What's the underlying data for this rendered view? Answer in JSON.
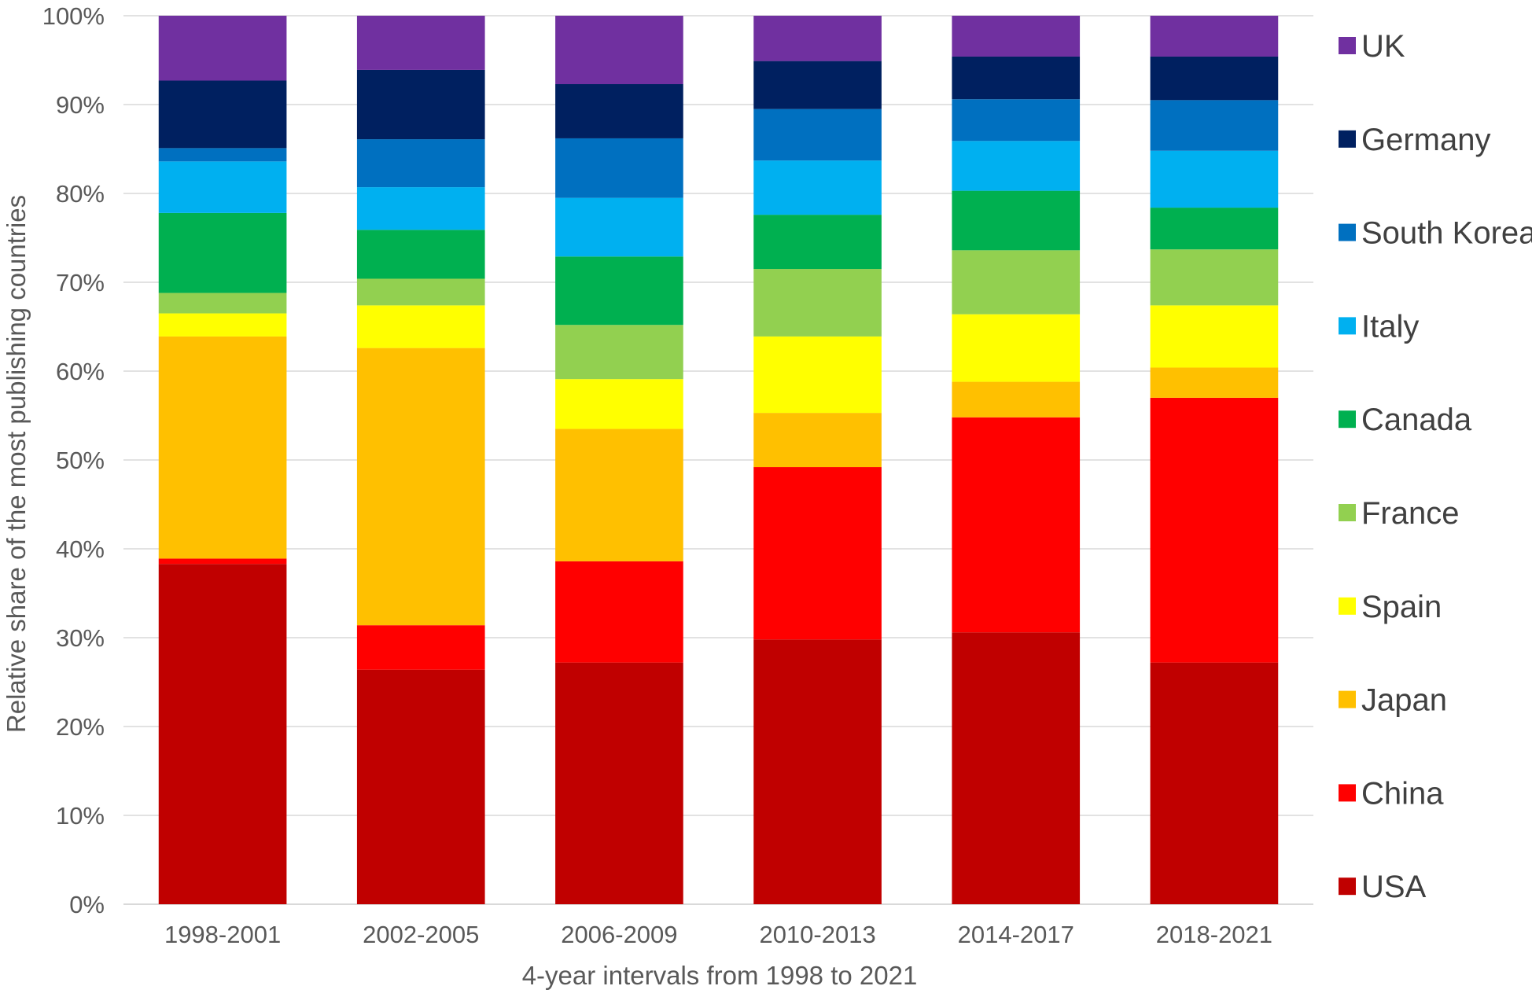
{
  "chart_data": {
    "type": "bar",
    "stacked": true,
    "title": "",
    "xlabel": "4-year intervals from 1998 to 2021",
    "ylabel": "Relative share of the most publishing countries",
    "ylim": [
      0,
      100
    ],
    "y_ticks": [
      "0%",
      "10%",
      "20%",
      "30%",
      "40%",
      "50%",
      "60%",
      "70%",
      "80%",
      "90%",
      "100%"
    ],
    "grid": true,
    "legend_position": "right",
    "categories": [
      "1998-2001",
      "2002-2005",
      "2006-2009",
      "2010-2013",
      "2014-2017",
      "2018-2021"
    ],
    "series": [
      {
        "name": "USA",
        "color": "#c00000",
        "values": [
          38.3,
          26.4,
          27.2,
          29.8,
          30.6,
          27.2
        ]
      },
      {
        "name": "China",
        "color": "#ff0000",
        "values": [
          0.6,
          5.0,
          11.4,
          19.4,
          24.2,
          29.8
        ]
      },
      {
        "name": "Japan",
        "color": "#ffc000",
        "values": [
          25.0,
          31.2,
          14.9,
          6.1,
          4.0,
          3.4
        ]
      },
      {
        "name": "Spain",
        "color": "#ffff00",
        "values": [
          2.6,
          4.8,
          5.6,
          8.6,
          7.6,
          7.0
        ]
      },
      {
        "name": "France",
        "color": "#92d050",
        "values": [
          2.3,
          3.0,
          6.1,
          7.6,
          7.2,
          6.3
        ]
      },
      {
        "name": "Canada",
        "color": "#00b050",
        "values": [
          9.0,
          5.5,
          7.7,
          6.1,
          6.7,
          4.7
        ]
      },
      {
        "name": "Italy",
        "color": "#00b0f0",
        "values": [
          5.8,
          4.8,
          6.6,
          6.1,
          5.6,
          6.4
        ]
      },
      {
        "name": "South Korea",
        "color": "#0070c0",
        "values": [
          1.5,
          5.4,
          6.7,
          5.8,
          4.7,
          5.7
        ]
      },
      {
        "name": "Germany",
        "color": "#002060",
        "values": [
          7.6,
          7.8,
          6.1,
          5.4,
          4.8,
          4.9
        ]
      },
      {
        "name": "UK",
        "color": "#7030a0",
        "values": [
          7.3,
          6.1,
          7.7,
          5.1,
          4.6,
          4.6
        ]
      }
    ]
  }
}
